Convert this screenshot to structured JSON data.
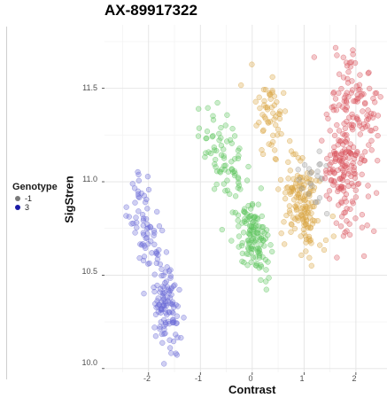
{
  "chart_data": {
    "type": "scatter",
    "title": "AX-89917322",
    "xlabel": "Contrast",
    "ylabel": "SigStren",
    "xlim": [
      -2.85,
      2.6
    ],
    "ylim": [
      9.98,
      11.84
    ],
    "x_ticks": [
      -2,
      -1,
      0,
      1,
      2
    ],
    "x_tick_labels": [
      "-2",
      "-1",
      "0",
      "1",
      "2"
    ],
    "y_ticks": [
      10.0,
      10.5,
      11.0,
      11.5
    ],
    "y_tick_labels": [
      "10.0",
      "10.5",
      "11.0",
      "11.5"
    ],
    "grid": true,
    "legend": {
      "title": "Genotype",
      "placement": "left",
      "entries": [
        {
          "label": "-1",
          "color": "#7a7a7a"
        },
        {
          "label": "3",
          "color": "#1a1aa6"
        }
      ]
    },
    "series": [
      {
        "name": "",
        "color": "#6b6bd6",
        "clusters": [
          {
            "n": 70,
            "cx": -2.05,
            "cy": 10.75,
            "sx": 0.17,
            "sy": 0.14,
            "rho": -0.45
          },
          {
            "n": 110,
            "cx": -1.65,
            "cy": 10.33,
            "sx": 0.16,
            "sy": 0.12,
            "rho": -0.35
          }
        ]
      },
      {
        "name": "",
        "color": "#5cc45c",
        "clusters": [
          {
            "n": 70,
            "cx": -0.55,
            "cy": 11.12,
            "sx": 0.2,
            "sy": 0.13,
            "rho": -0.4
          },
          {
            "n": 130,
            "cx": 0.0,
            "cy": 10.72,
            "sx": 0.16,
            "sy": 0.12,
            "rho": -0.3
          }
        ]
      },
      {
        "name": "",
        "color": "#d9a441",
        "clusters": [
          {
            "n": 55,
            "cx": 0.35,
            "cy": 11.33,
            "sx": 0.17,
            "sy": 0.1,
            "rho": -0.3
          },
          {
            "n": 150,
            "cx": 0.97,
            "cy": 10.88,
            "sx": 0.18,
            "sy": 0.14,
            "rho": -0.35
          }
        ]
      },
      {
        "name": "",
        "color": "#9a9a9a",
        "clusters": [
          {
            "n": 22,
            "cx": 1.22,
            "cy": 11.02,
            "sx": 0.13,
            "sy": 0.08,
            "rho": -0.2
          }
        ]
      },
      {
        "name": "",
        "color": "#d9545c",
        "clusters": [
          {
            "n": 130,
            "cx": 1.95,
            "cy": 11.38,
            "sx": 0.24,
            "sy": 0.16,
            "rho": -0.2
          },
          {
            "n": 130,
            "cx": 1.75,
            "cy": 11.0,
            "sx": 0.22,
            "sy": 0.15,
            "rho": -0.3
          }
        ]
      }
    ]
  }
}
